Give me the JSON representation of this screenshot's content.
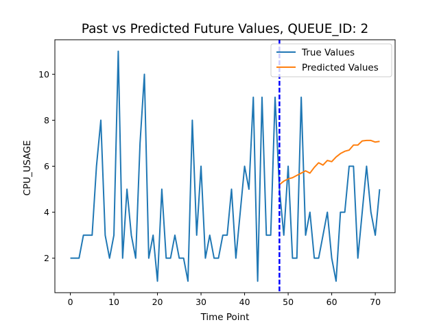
{
  "chart_data": {
    "type": "line",
    "title": "Past vs Predicted Future Values, QUEUE_ID: 2",
    "xlabel": "Time Point",
    "ylabel": "CPU_USAGE",
    "xlim": [
      -3.55,
      74.55
    ],
    "ylim": [
      0.5,
      11.5
    ],
    "xticks": [
      0,
      10,
      20,
      30,
      40,
      50,
      60,
      70
    ],
    "yticks": [
      2,
      4,
      6,
      8,
      10
    ],
    "grid": false,
    "legend": "top-right",
    "vline": {
      "x": 48,
      "color": "#0000ff",
      "style": "dashed"
    },
    "series": [
      {
        "name": "True Values",
        "color": "#1f77b4",
        "x": [
          0,
          1,
          2,
          3,
          4,
          5,
          6,
          7,
          8,
          9,
          10,
          11,
          12,
          13,
          14,
          15,
          16,
          17,
          18,
          19,
          20,
          21,
          22,
          23,
          24,
          25,
          26,
          27,
          28,
          29,
          30,
          31,
          32,
          33,
          34,
          35,
          36,
          37,
          38,
          39,
          40,
          41,
          42,
          43,
          44,
          45,
          46,
          47,
          48,
          49,
          50,
          51,
          52,
          53,
          54,
          55,
          56,
          57,
          58,
          59,
          60,
          61,
          62,
          63,
          64,
          65,
          66,
          67,
          68,
          69,
          70,
          71
        ],
        "values": [
          2,
          2,
          2,
          3,
          3,
          3,
          6,
          8,
          3,
          2,
          3,
          11,
          2,
          5,
          3,
          2,
          7,
          10,
          2,
          3,
          1,
          5,
          2,
          2,
          3,
          2,
          2,
          1,
          8,
          3,
          6,
          2,
          3,
          2,
          2,
          3,
          3,
          5,
          2,
          4,
          6,
          5,
          9,
          1,
          9,
          3,
          3,
          9,
          5,
          3,
          6,
          2,
          2,
          9,
          3,
          4,
          2,
          2,
          3,
          4,
          2,
          1,
          4,
          4,
          6,
          6,
          2,
          4,
          6,
          4,
          3,
          5
        ]
      },
      {
        "name": "Predicted Values",
        "color": "#ff7f0e",
        "x": [
          48,
          49,
          50,
          51,
          52,
          53,
          54,
          55,
          56,
          57,
          58,
          59,
          60,
          61,
          62,
          63,
          64,
          65,
          66,
          67,
          68,
          69,
          70,
          71
        ],
        "values": [
          5.2,
          5.35,
          5.45,
          5.5,
          5.6,
          5.7,
          5.8,
          5.7,
          5.95,
          6.15,
          6.05,
          6.25,
          6.2,
          6.4,
          6.55,
          6.65,
          6.7,
          6.92,
          6.92,
          7.1,
          7.12,
          7.12,
          7.05,
          7.08
        ]
      }
    ]
  }
}
